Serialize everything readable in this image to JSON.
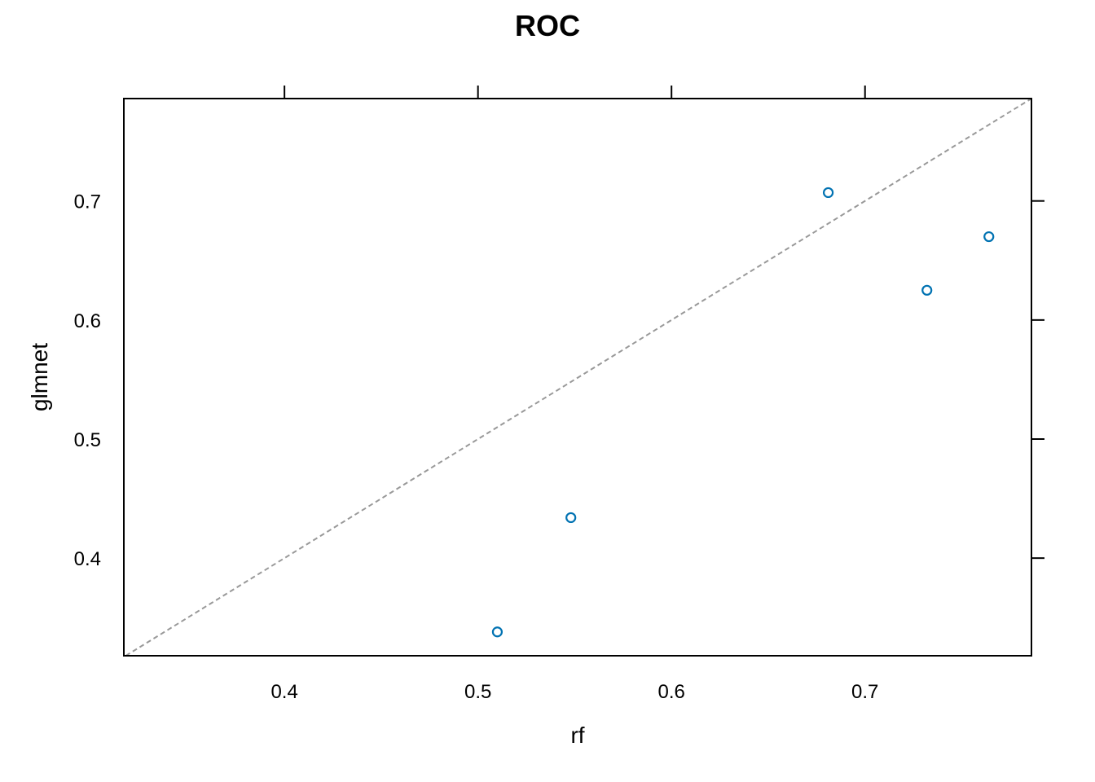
{
  "chart_data": {
    "type": "scatter",
    "title": "ROC",
    "xlabel": "rf",
    "ylabel": "glmnet",
    "xlim": [
      0.317,
      0.786
    ],
    "ylim": [
      0.318,
      0.786
    ],
    "xticks": [
      0.4,
      0.5,
      0.6,
      0.7
    ],
    "yticks": [
      0.4,
      0.5,
      0.6,
      0.7
    ],
    "tick_labels_x": [
      "0.4",
      "0.5",
      "0.6",
      "0.7"
    ],
    "tick_labels_y": [
      "0.4",
      "0.5",
      "0.6",
      "0.7"
    ],
    "series": [
      {
        "points": [
          {
            "x": 0.681,
            "y": 0.707
          },
          {
            "x": 0.764,
            "y": 0.67
          },
          {
            "x": 0.732,
            "y": 0.625
          },
          {
            "x": 0.548,
            "y": 0.434
          },
          {
            "x": 0.51,
            "y": 0.338
          }
        ],
        "marker": "open-circle",
        "color": "#0072B2"
      }
    ],
    "reference_line": {
      "type": "identity",
      "style": "dashed",
      "color": "#999999"
    },
    "grid": false,
    "legend": "none"
  }
}
